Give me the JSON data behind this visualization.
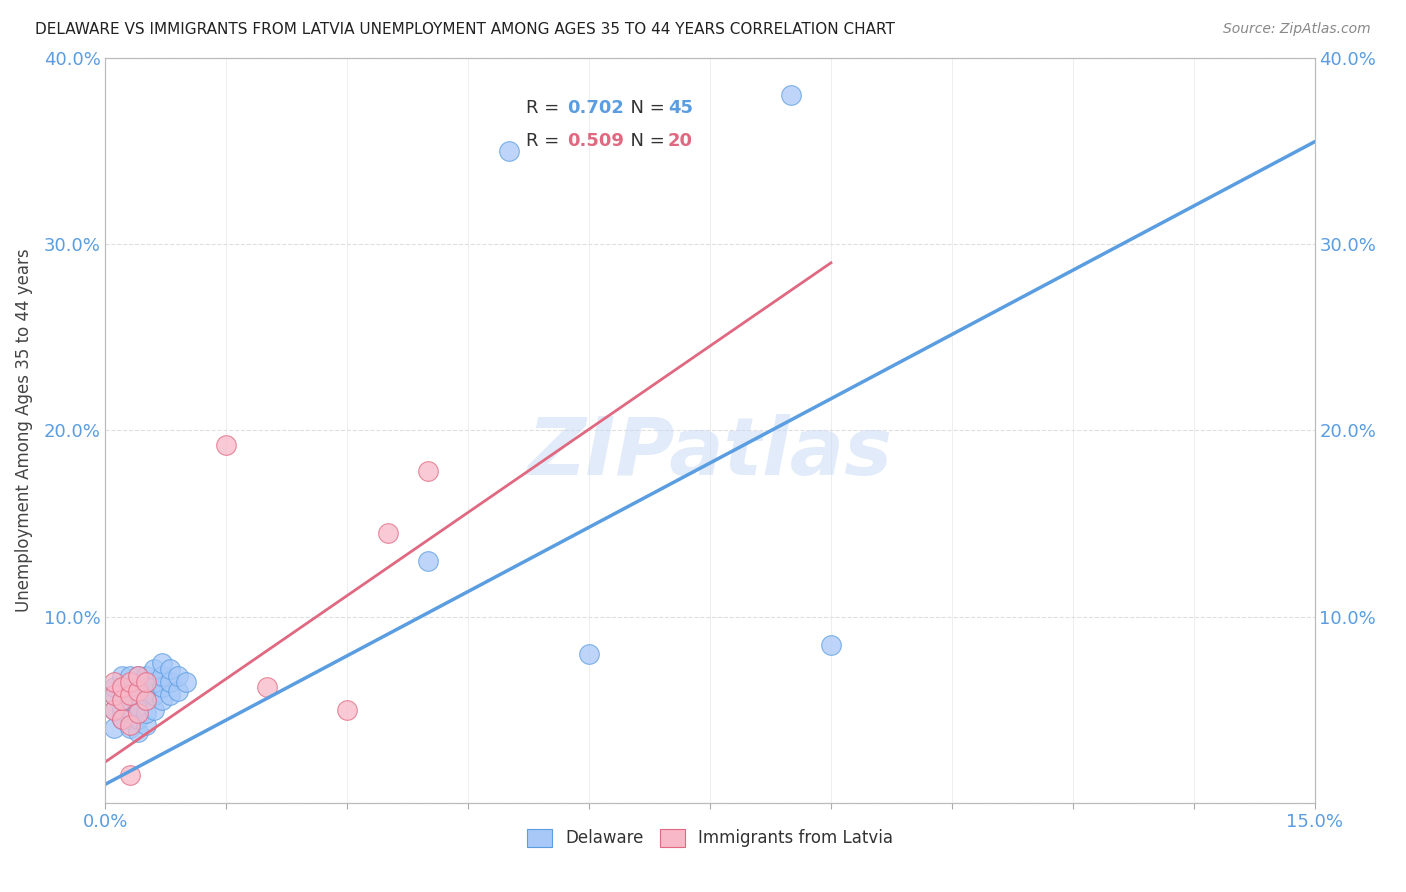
{
  "title": "DELAWARE VS IMMIGRANTS FROM LATVIA UNEMPLOYMENT AMONG AGES 35 TO 44 YEARS CORRELATION CHART",
  "source": "Source: ZipAtlas.com",
  "ylabel": "Unemployment Among Ages 35 to 44 years",
  "xlim": [
    0,
    0.15
  ],
  "ylim": [
    0,
    0.4
  ],
  "xticks": [
    0.0,
    0.015,
    0.03,
    0.045,
    0.06,
    0.075,
    0.09,
    0.105,
    0.12,
    0.135,
    0.15
  ],
  "xticklabels_shown": {
    "0.0": "0.0%",
    "0.15": "15.0%"
  },
  "yticks": [
    0.0,
    0.1,
    0.2,
    0.3,
    0.4
  ],
  "yticklabels": [
    "",
    "10.0%",
    "20.0%",
    "30.0%",
    "40.0%"
  ],
  "delaware_color": "#a8c8f8",
  "delaware_edge": "#5a9de0",
  "latvia_color": "#f8b8c8",
  "latvia_edge": "#e06880",
  "delaware_R": 0.702,
  "delaware_N": 45,
  "latvia_R": 0.509,
  "latvia_N": 20,
  "watermark": "ZIPatlas",
  "delaware_points": [
    [
      0.001,
      0.04
    ],
    [
      0.001,
      0.05
    ],
    [
      0.001,
      0.058
    ],
    [
      0.001,
      0.062
    ],
    [
      0.002,
      0.045
    ],
    [
      0.002,
      0.05
    ],
    [
      0.002,
      0.055
    ],
    [
      0.002,
      0.062
    ],
    [
      0.002,
      0.068
    ],
    [
      0.003,
      0.04
    ],
    [
      0.003,
      0.045
    ],
    [
      0.003,
      0.05
    ],
    [
      0.003,
      0.055
    ],
    [
      0.003,
      0.062
    ],
    [
      0.003,
      0.068
    ],
    [
      0.004,
      0.038
    ],
    [
      0.004,
      0.045
    ],
    [
      0.004,
      0.052
    ],
    [
      0.004,
      0.058
    ],
    [
      0.004,
      0.062
    ],
    [
      0.004,
      0.068
    ],
    [
      0.005,
      0.042
    ],
    [
      0.005,
      0.048
    ],
    [
      0.005,
      0.055
    ],
    [
      0.005,
      0.06
    ],
    [
      0.005,
      0.068
    ],
    [
      0.006,
      0.05
    ],
    [
      0.006,
      0.058
    ],
    [
      0.006,
      0.065
    ],
    [
      0.006,
      0.072
    ],
    [
      0.007,
      0.055
    ],
    [
      0.007,
      0.062
    ],
    [
      0.007,
      0.068
    ],
    [
      0.007,
      0.075
    ],
    [
      0.008,
      0.058
    ],
    [
      0.008,
      0.065
    ],
    [
      0.008,
      0.072
    ],
    [
      0.009,
      0.06
    ],
    [
      0.009,
      0.068
    ],
    [
      0.01,
      0.065
    ],
    [
      0.04,
      0.13
    ],
    [
      0.05,
      0.35
    ],
    [
      0.06,
      0.08
    ],
    [
      0.085,
      0.38
    ],
    [
      0.09,
      0.085
    ]
  ],
  "latvia_points": [
    [
      0.001,
      0.05
    ],
    [
      0.001,
      0.058
    ],
    [
      0.001,
      0.065
    ],
    [
      0.002,
      0.045
    ],
    [
      0.002,
      0.055
    ],
    [
      0.002,
      0.062
    ],
    [
      0.003,
      0.042
    ],
    [
      0.003,
      0.058
    ],
    [
      0.003,
      0.065
    ],
    [
      0.004,
      0.048
    ],
    [
      0.004,
      0.06
    ],
    [
      0.004,
      0.068
    ],
    [
      0.005,
      0.055
    ],
    [
      0.005,
      0.065
    ],
    [
      0.015,
      0.192
    ],
    [
      0.04,
      0.178
    ],
    [
      0.035,
      0.145
    ],
    [
      0.003,
      0.015
    ],
    [
      0.02,
      0.062
    ],
    [
      0.03,
      0.05
    ]
  ],
  "delaware_line": [
    [
      0.0,
      0.01
    ],
    [
      0.15,
      0.355
    ]
  ],
  "latvia_line": [
    [
      0.0,
      0.022
    ],
    [
      0.09,
      0.29
    ]
  ],
  "background_color": "#ffffff",
  "grid_color": "#d8d8d8",
  "title_color": "#222222",
  "axis_label_color": "#444444",
  "tick_color_blue": "#5a9de0",
  "tick_color_dark": "#333333"
}
